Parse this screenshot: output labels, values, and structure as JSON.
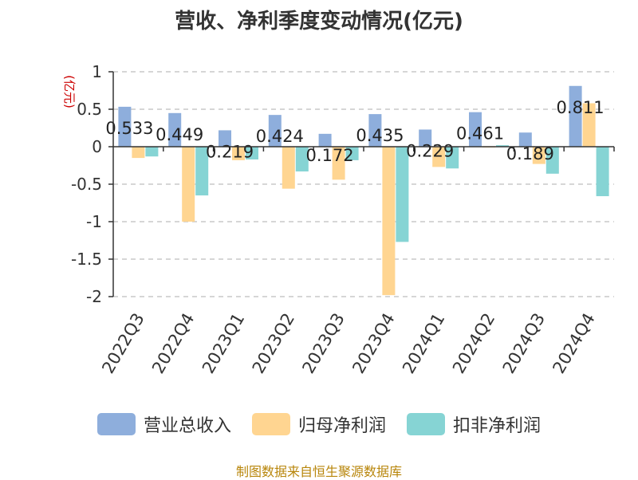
{
  "chart_data": {
    "type": "bar",
    "title": "营收、净利季度变动情况(亿元)",
    "unit_label": "(亿元)",
    "categories": [
      "2022Q3",
      "2022Q4",
      "2023Q1",
      "2023Q2",
      "2023Q3",
      "2023Q4",
      "2024Q1",
      "2024Q2",
      "2024Q3",
      "2024Q4"
    ],
    "series": [
      {
        "name": "营业总收入",
        "color": "#8eaedc",
        "values": [
          0.533,
          0.449,
          0.219,
          0.424,
          0.172,
          0.435,
          0.229,
          0.461,
          0.189,
          0.811
        ]
      },
      {
        "name": "归母净利润",
        "color": "#ffd591",
        "values": [
          -0.15,
          -1.0,
          -0.18,
          -0.56,
          -0.44,
          -1.98,
          -0.27,
          0.0,
          -0.23,
          0.58
        ]
      },
      {
        "name": "扣非净利润",
        "color": "#86d4d4",
        "values": [
          -0.13,
          -0.65,
          -0.17,
          -0.33,
          -0.18,
          -1.27,
          -0.29,
          0.02,
          -0.36,
          -0.66
        ]
      }
    ],
    "data_labels": [
      "0.533",
      "0.449",
      "0.219",
      "0.424",
      "0.172",
      "0.435",
      "0.229",
      "0.461",
      "0.189",
      "0.811"
    ],
    "ylim": [
      -2,
      1
    ],
    "yticks": [
      1,
      0.5,
      0,
      -0.5,
      -1,
      -1.5,
      -2
    ],
    "ytick_labels": [
      "1",
      "0.5",
      "0",
      "-0.5",
      "-1",
      "-1.5",
      "-2"
    ],
    "grid": true,
    "legend_position": "bottom",
    "source": "制图数据来自恒生聚源数据库"
  }
}
